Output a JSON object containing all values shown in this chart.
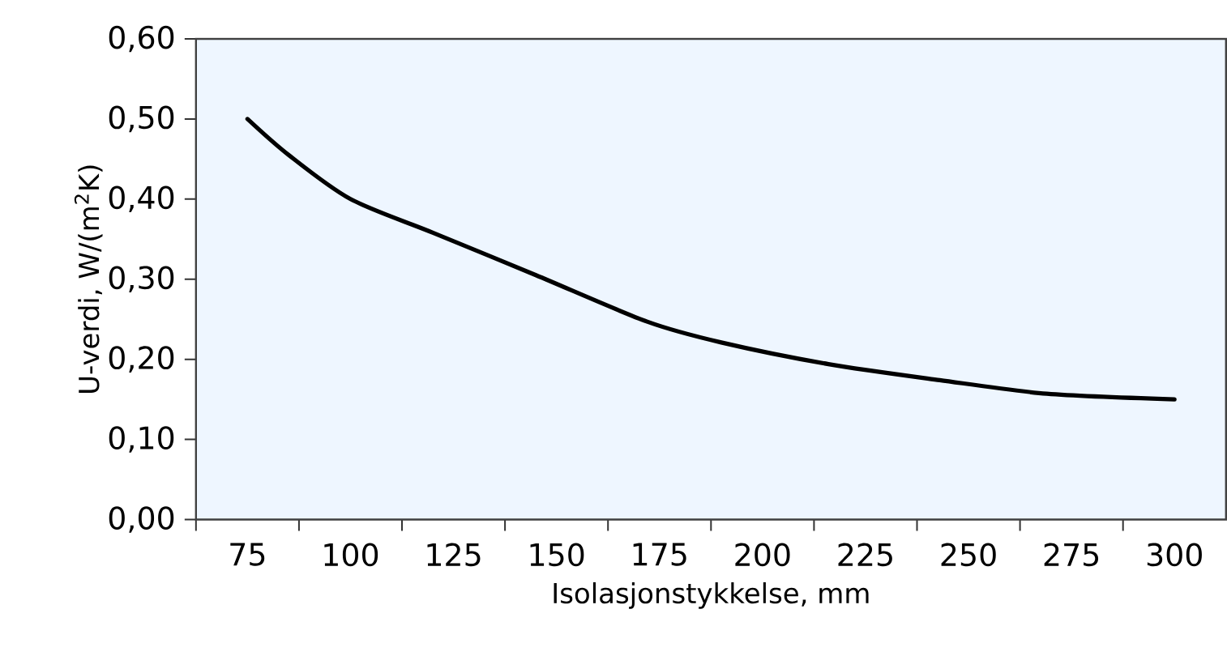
{
  "chart_data": {
    "type": "line",
    "xlabel": "Isolasjonstykkelse, mm",
    "ylabel": "U-verdi, W/(m$^{2}$K)",
    "x": [
      75,
      85,
      100,
      120,
      145,
      172,
      190,
      216,
      243,
      269,
      300
    ],
    "series": [
      {
        "color": "#000000",
        "values": [
          0.5,
          0.455,
          0.4,
          0.358,
          0.305,
          0.247,
          0.221,
          0.194,
          0.174,
          0.157,
          0.15
        ]
      }
    ],
    "xlim": [
      62.5,
      312.5
    ],
    "xticks": [
      75,
      100,
      125,
      150,
      175,
      200,
      225,
      250,
      275,
      300,
      {
        "value": 62.5,
        "label": null
      },
      {
        "value": 87.5,
        "label": null
      },
      {
        "value": 112.5,
        "label": null
      },
      {
        "value": 137.5,
        "label": null
      },
      {
        "value": 162.5,
        "label": null
      },
      {
        "value": 187.5,
        "label": null
      },
      {
        "value": 212.5,
        "label": null
      },
      {
        "value": 237.5,
        "label": null
      },
      {
        "value": 262.5,
        "label": null
      },
      {
        "value": 287.5,
        "label": null
      }
    ],
    "ylim": [
      0,
      0.6
    ],
    "yticks": [
      {
        "value": 0,
        "label": "0,00"
      },
      {
        "value": 0.1,
        "label": "0,10"
      },
      {
        "value": 0.2,
        "label": "0,20"
      },
      {
        "value": 0.3,
        "label": "0,30"
      },
      {
        "value": 0.4,
        "label": "0,40"
      },
      {
        "value": 0.5,
        "label": "0,50"
      },
      {
        "value": 0.6,
        "label": "0,60"
      }
    ],
    "grid": false,
    "marker": "none",
    "line_style": "solid"
  }
}
